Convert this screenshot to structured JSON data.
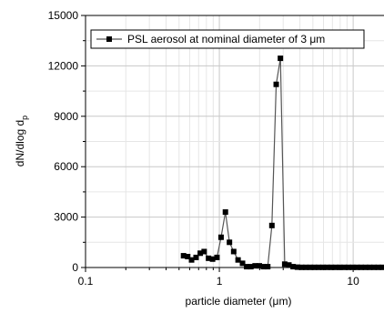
{
  "chart_data": {
    "type": "line",
    "title": "",
    "xlabel": "particle diameter (μm)",
    "ylabel_main": "dN/dlog d",
    "ylabel_sub": "p",
    "x_scale": "log",
    "xlim": [
      0.1,
      17
    ],
    "ylim": [
      0,
      15000
    ],
    "x_ticks": [
      0.1,
      1,
      10
    ],
    "x_tick_labels": [
      "0.1",
      "1",
      "10"
    ],
    "y_ticks": [
      0,
      3000,
      6000,
      9000,
      12000,
      15000
    ],
    "y_tick_labels": [
      "0",
      "3000",
      "6000",
      "9000",
      "12000",
      "15000"
    ],
    "grid": true,
    "legend_position": "top",
    "series": [
      {
        "name": "PSL aerosol at nominal diameter of 3 μm",
        "color": "#000000",
        "marker": "square",
        "x": [
          0.54,
          0.58,
          0.62,
          0.67,
          0.72,
          0.77,
          0.83,
          0.89,
          0.96,
          1.03,
          1.11,
          1.19,
          1.28,
          1.38,
          1.49,
          1.6,
          1.72,
          1.85,
          1.99,
          2.14,
          2.3,
          2.47,
          2.66,
          2.86,
          3.08,
          3.31,
          3.56,
          3.83,
          4.12,
          4.43,
          4.77,
          5.13,
          5.52,
          5.94,
          6.39,
          6.88,
          7.4,
          7.96,
          8.57,
          9.22,
          9.92,
          10.68,
          11.49,
          12.36,
          13.3,
          14.31,
          15.4,
          16.57
        ],
        "y": [
          700,
          650,
          450,
          600,
          850,
          950,
          550,
          500,
          600,
          1800,
          3300,
          1500,
          950,
          450,
          250,
          50,
          50,
          100,
          100,
          50,
          50,
          2500,
          10900,
          12450,
          200,
          150,
          50,
          20,
          10,
          10,
          10,
          10,
          10,
          10,
          10,
          10,
          10,
          10,
          10,
          10,
          10,
          10,
          10,
          10,
          10,
          10,
          10,
          10
        ]
      }
    ]
  }
}
